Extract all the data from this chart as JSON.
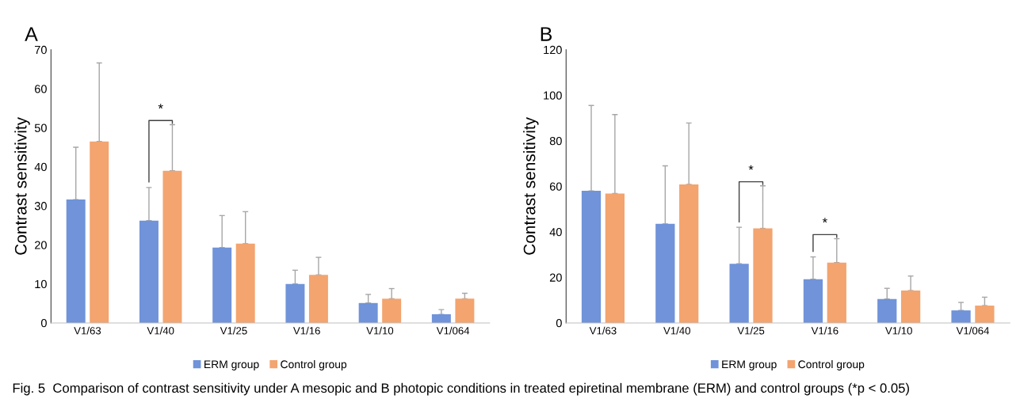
{
  "chart_data": [
    {
      "type": "bar",
      "title": "A",
      "ylabel": "Contrast sensitivity",
      "categories": [
        "V1/63",
        "V1/40",
        "V1/25",
        "V1/16",
        "V1/10",
        "V1/064"
      ],
      "series": [
        {
          "name": "ERM group",
          "color": "#7093d9",
          "values": [
            31.6,
            26.2,
            19.3,
            10.0,
            5.1,
            2.2
          ],
          "errors": [
            [
              31.6,
              45
            ],
            [
              26.2,
              34.7
            ],
            [
              19.3,
              27.5
            ],
            [
              10.0,
              13.5
            ],
            [
              5.1,
              7.3
            ],
            [
              2.2,
              3.4
            ]
          ]
        },
        {
          "name": "Control group",
          "color": "#f3a46f",
          "values": [
            46.5,
            39,
            20.3,
            12.3,
            6.2,
            6.2
          ],
          "errors": [
            [
              46.5,
              66.6
            ],
            [
              39,
              50.8
            ],
            [
              20.3,
              28.5
            ],
            [
              12.3,
              16.8
            ],
            [
              6.2,
              8.8
            ],
            [
              6.2,
              7.6
            ]
          ]
        }
      ],
      "ylim": [
        0,
        70
      ],
      "yticks": [
        0,
        10,
        20,
        30,
        40,
        50,
        60,
        70
      ],
      "grid": false,
      "legend": "bottom",
      "annotations": [
        "*",
        "Fig. 5  Comparison of contrast sensitivity under A mesopic and B photopic conditions in treated epiretinal membrane (ERM) and control groups (*p < 0.05)"
      ]
    },
    {
      "type": "bar",
      "title": "B",
      "ylabel": "Contrast sensitivity",
      "categories": [
        "V1/63",
        "V1/40",
        "V1/25",
        "V1/16",
        "V1/10",
        "V1/064"
      ],
      "series": [
        {
          "name": "ERM group",
          "color": "#7093d9",
          "values": [
            58,
            43.5,
            26,
            19.2,
            10.5,
            5.5
          ],
          "errors": [
            [
              58,
              95.5
            ],
            [
              43.5,
              69
            ],
            [
              26,
              42
            ],
            [
              19.2,
              29
            ],
            [
              10.5,
              15.2
            ],
            [
              5.5,
              9
            ]
          ]
        },
        {
          "name": "Control group",
          "color": "#f3a46f",
          "values": [
            56.8,
            60.8,
            41.5,
            26.5,
            14.2,
            7.6
          ],
          "errors": [
            [
              56.8,
              91.5
            ],
            [
              60.8,
              87.8
            ],
            [
              41.5,
              60.2
            ],
            [
              26.5,
              37
            ],
            [
              14.2,
              20.6
            ],
            [
              7.6,
              11.3
            ]
          ]
        }
      ],
      "ylim": [
        0,
        120
      ],
      "yticks": [
        0,
        20,
        40,
        60,
        80,
        100,
        120
      ],
      "grid": false,
      "legend": "bottom",
      "annotations": [
        "*",
        "*"
      ]
    }
  ]
}
